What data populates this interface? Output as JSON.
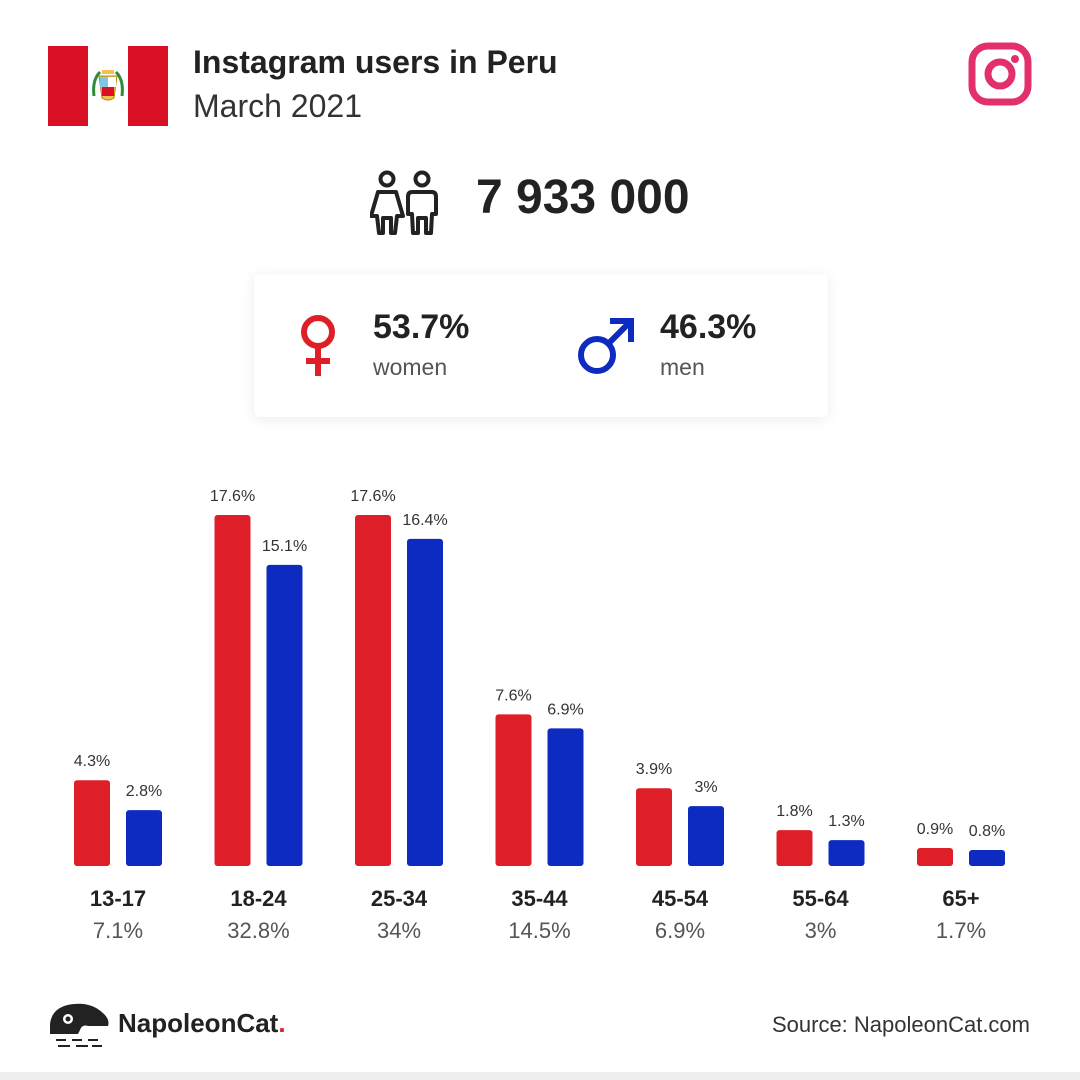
{
  "header": {
    "title": "Instagram users in Peru",
    "subtitle": "March 2021"
  },
  "flag": {
    "country": "Peru",
    "icon": "peru-flag-icon",
    "red": "#d91023",
    "white": "#ffffff"
  },
  "brand_icon": "instagram-icon",
  "total_users": "7 933 000",
  "gender": {
    "women": {
      "value": "53.7%",
      "label": "women",
      "color": "#df1f27"
    },
    "men": {
      "value": "46.3%",
      "label": "men",
      "color": "#0d2bc1"
    }
  },
  "chart_data": {
    "type": "bar",
    "categories": [
      "13-17",
      "18-24",
      "25-34",
      "35-44",
      "45-54",
      "55-64",
      "65+"
    ],
    "category_totals": [
      "7.1%",
      "32.8%",
      "34%",
      "14.5%",
      "6.9%",
      "3%",
      "1.7%"
    ],
    "series": [
      {
        "color": "#df1f27",
        "values": [
          4.3,
          17.6,
          17.6,
          7.6,
          3.9,
          1.8,
          0.9
        ],
        "labels": [
          "4.3%",
          "17.6%",
          "17.6%",
          "7.6%",
          "3.9%",
          "1.8%",
          "0.9%"
        ]
      },
      {
        "color": "#0d2bc1",
        "values": [
          2.8,
          15.1,
          16.4,
          6.9,
          3.0,
          1.3,
          0.8
        ],
        "labels": [
          "2.8%",
          "15.1%",
          "16.4%",
          "6.9%",
          "3%",
          "1.3%",
          "0.8%"
        ]
      }
    ],
    "ylim": [
      0,
      17.6
    ],
    "grid": false,
    "legend": "none"
  },
  "footer": {
    "brand_name": "NapoleonCat",
    "brand_dot": ".",
    "source": "Source: NapoleonCat.com"
  }
}
